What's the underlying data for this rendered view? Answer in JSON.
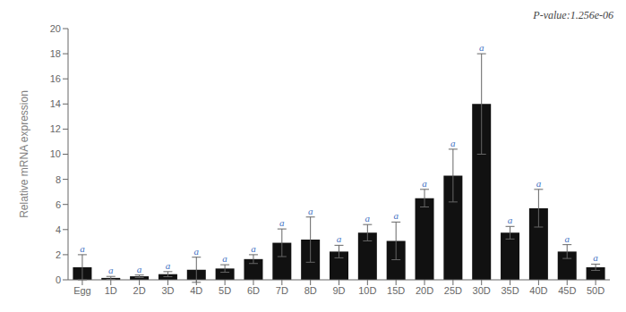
{
  "chart_data": {
    "type": "bar",
    "categories": [
      "Egg",
      "1D",
      "2D",
      "3D",
      "4D",
      "5D",
      "6D",
      "7D",
      "8D",
      "9D",
      "10D",
      "15D",
      "20D",
      "25D",
      "30D",
      "35D",
      "40D",
      "45D",
      "50D"
    ],
    "values": [
      1.0,
      0.15,
      0.28,
      0.45,
      0.8,
      0.9,
      1.65,
      2.95,
      3.2,
      2.25,
      3.75,
      3.1,
      6.5,
      8.3,
      14.0,
      3.75,
      5.7,
      2.25,
      1.0
    ],
    "errors": [
      1.0,
      0.12,
      0.1,
      0.2,
      1.0,
      0.3,
      0.35,
      1.1,
      1.8,
      0.5,
      0.65,
      1.5,
      0.7,
      2.1,
      4.0,
      0.5,
      1.5,
      0.55,
      0.25
    ],
    "color": "#111111",
    "ylabel": "Relative mRNA expression",
    "ylim": [
      0,
      20
    ],
    "yticks": [
      0,
      2,
      4,
      6,
      8,
      10,
      12,
      14,
      16,
      18,
      20
    ],
    "grid": false,
    "annotations": [
      {
        "text": "P-value:1.256e-06"
      },
      {
        "text": "a",
        "category": "Egg",
        "color": "#4472c4"
      },
      {
        "text": "a",
        "category": "1D",
        "color": "#4472c4"
      },
      {
        "text": "a",
        "category": "2D",
        "color": "#4472c4"
      },
      {
        "text": "a",
        "category": "3D",
        "color": "#4472c4"
      },
      {
        "text": "a",
        "category": "4D",
        "color": "#4472c4"
      },
      {
        "text": "a",
        "category": "5D",
        "color": "#4472c4"
      },
      {
        "text": "a",
        "category": "6D",
        "color": "#4472c4"
      },
      {
        "text": "a",
        "category": "7D",
        "color": "#4472c4"
      },
      {
        "text": "a",
        "category": "8D",
        "color": "#4472c4"
      },
      {
        "text": "a",
        "category": "9D",
        "color": "#4472c4"
      },
      {
        "text": "a",
        "category": "10D",
        "color": "#4472c4"
      },
      {
        "text": "a",
        "category": "15D",
        "color": "#4472c4"
      },
      {
        "text": "a",
        "category": "20D",
        "color": "#4472c4"
      },
      {
        "text": "a",
        "category": "25D",
        "color": "#4472c4"
      },
      {
        "text": "a",
        "category": "30D",
        "color": "#4472c4"
      },
      {
        "text": "a",
        "category": "35D",
        "color": "#4472c4"
      },
      {
        "text": "a",
        "category": "40D",
        "color": "#4472c4"
      },
      {
        "text": "a",
        "category": "45D",
        "color": "#4472c4"
      },
      {
        "text": "a",
        "category": "50D",
        "color": "#4472c4"
      }
    ]
  }
}
